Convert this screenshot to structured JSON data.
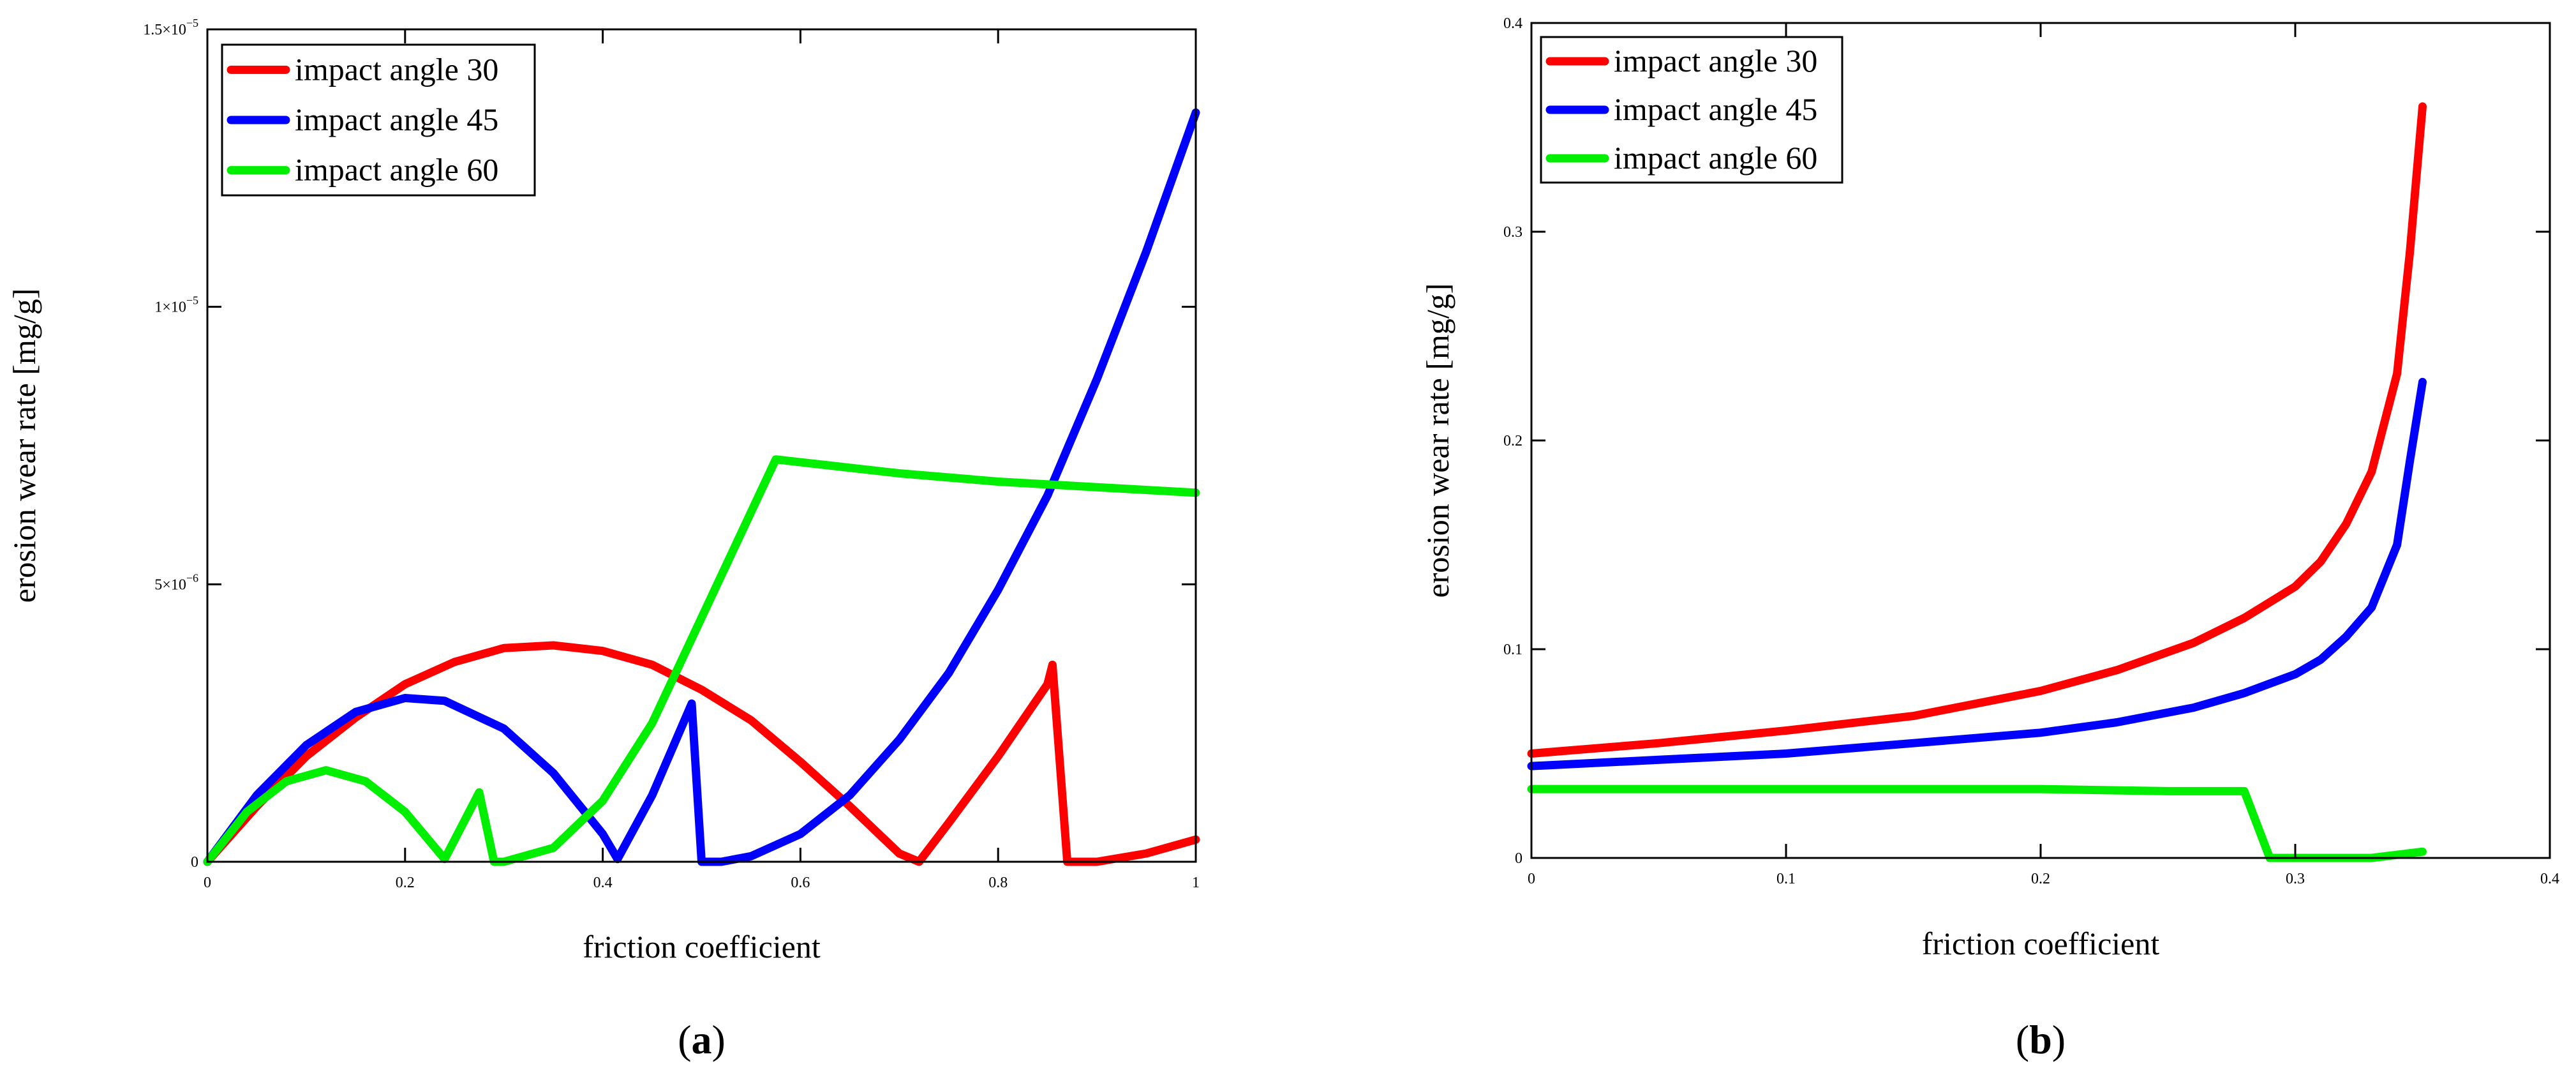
{
  "chart_data": [
    {
      "panel": "a",
      "type": "line",
      "xlabel": "friction coefficient",
      "ylabel": "erosion wear rate [mg/g]",
      "caption": {
        "open": "(",
        "letter": "a",
        "close": ")"
      },
      "xlim": [
        0,
        1
      ],
      "ylim": [
        0,
        1.5e-05
      ],
      "xticks": [
        {
          "value": 0,
          "label": "0"
        },
        {
          "value": 0.2,
          "label": "0.2"
        },
        {
          "value": 0.4,
          "label": "0.4"
        },
        {
          "value": 0.6,
          "label": "0.6"
        },
        {
          "value": 0.8,
          "label": "0.8"
        },
        {
          "value": 1,
          "label": "1"
        }
      ],
      "yticks": [
        {
          "value": 0,
          "mantissa": "0",
          "exponent": ""
        },
        {
          "value": 5e-06,
          "mantissa": "5×10",
          "exponent": "−6"
        },
        {
          "value": 1e-05,
          "mantissa": "1×10",
          "exponent": "−5"
        },
        {
          "value": 1.5e-05,
          "mantissa": "1.5×10",
          "exponent": "−5"
        }
      ],
      "legend": {
        "position": "top-left"
      },
      "series": [
        {
          "name": "impact angle 30",
          "color": "#ff0000",
          "x": [
            0,
            0.05,
            0.1,
            0.15,
            0.2,
            0.25,
            0.3,
            0.35,
            0.4,
            0.45,
            0.5,
            0.55,
            0.6,
            0.65,
            0.7,
            0.72,
            0.75,
            0.8,
            0.85,
            0.855,
            0.87,
            0.9,
            0.95,
            1.0
          ],
          "y": [
            0,
            1e-06,
            1.9e-06,
            2.6e-06,
            3.2e-06,
            3.6e-06,
            3.85e-06,
            3.9e-06,
            3.8e-06,
            3.55e-06,
            3.1e-06,
            2.55e-06,
            1.8e-06,
            1e-06,
            1.5e-07,
            0,
            7e-07,
            1.9e-06,
            3.2e-06,
            3.55e-06,
            0,
            0,
            1.5e-07,
            4e-07
          ]
        },
        {
          "name": "impact angle 45",
          "color": "#0000ff",
          "x": [
            0,
            0.05,
            0.1,
            0.15,
            0.2,
            0.24,
            0.3,
            0.35,
            0.4,
            0.415,
            0.45,
            0.49,
            0.5,
            0.52,
            0.55,
            0.6,
            0.65,
            0.7,
            0.75,
            0.8,
            0.85,
            0.9,
            0.95,
            1.0
          ],
          "y": [
            0,
            1.2e-06,
            2.1e-06,
            2.7e-06,
            2.95e-06,
            2.9e-06,
            2.4e-06,
            1.6e-06,
            5e-07,
            5e-08,
            1.2e-06,
            2.85e-06,
            0,
            0,
            1e-07,
            5e-07,
            1.2e-06,
            2.2e-06,
            3.4e-06,
            4.9e-06,
            6.6e-06,
            8.7e-06,
            1.1e-05,
            1.35e-05
          ]
        },
        {
          "name": "impact angle 60",
          "color": "#00ee00",
          "x": [
            0,
            0.04,
            0.08,
            0.12,
            0.16,
            0.2,
            0.24,
            0.275,
            0.29,
            0.3,
            0.35,
            0.4,
            0.45,
            0.5,
            0.55,
            0.575,
            0.6,
            0.7,
            0.8,
            0.9,
            1.0
          ],
          "y": [
            0,
            9e-07,
            1.45e-06,
            1.65e-06,
            1.45e-06,
            9e-07,
            5e-08,
            1.25e-06,
            0,
            0,
            2.5e-07,
            1.1e-06,
            2.5e-06,
            4.4e-06,
            6.3e-06,
            7.25e-06,
            7.2e-06,
            7e-06,
            6.85e-06,
            6.75e-06,
            6.65e-06
          ]
        }
      ]
    },
    {
      "panel": "b",
      "type": "line",
      "xlabel": "friction coefficient",
      "ylabel": "erosion wear rate [mg/g]",
      "caption": {
        "open": "(",
        "letter": "b",
        "close": ")"
      },
      "xlim": [
        0,
        0.4
      ],
      "ylim": [
        0,
        0.4
      ],
      "xticks": [
        {
          "value": 0,
          "label": "0"
        },
        {
          "value": 0.1,
          "label": "0.1"
        },
        {
          "value": 0.2,
          "label": "0.2"
        },
        {
          "value": 0.3,
          "label": "0.3"
        },
        {
          "value": 0.4,
          "label": "0.4"
        }
      ],
      "yticks": [
        {
          "value": 0,
          "label": "0"
        },
        {
          "value": 0.1,
          "label": "0.1"
        },
        {
          "value": 0.2,
          "label": "0.2"
        },
        {
          "value": 0.3,
          "label": "0.3"
        },
        {
          "value": 0.4,
          "label": "0.4"
        }
      ],
      "legend": {
        "position": "top-left"
      },
      "series": [
        {
          "name": "impact angle 30",
          "color": "#ff0000",
          "x": [
            0,
            0.05,
            0.1,
            0.15,
            0.2,
            0.23,
            0.26,
            0.28,
            0.3,
            0.31,
            0.32,
            0.33,
            0.34,
            0.345,
            0.35
          ],
          "y": [
            0.05,
            0.055,
            0.061,
            0.068,
            0.08,
            0.09,
            0.103,
            0.115,
            0.13,
            0.142,
            0.16,
            0.185,
            0.232,
            0.29,
            0.36
          ]
        },
        {
          "name": "impact angle 45",
          "color": "#0000ff",
          "x": [
            0,
            0.05,
            0.1,
            0.15,
            0.2,
            0.23,
            0.26,
            0.28,
            0.3,
            0.31,
            0.32,
            0.33,
            0.34,
            0.345,
            0.35
          ],
          "y": [
            0.044,
            0.047,
            0.05,
            0.055,
            0.06,
            0.065,
            0.072,
            0.079,
            0.088,
            0.095,
            0.106,
            0.12,
            0.15,
            0.19,
            0.228
          ]
        },
        {
          "name": "impact angle 60",
          "color": "#00ee00",
          "x": [
            0,
            0.1,
            0.2,
            0.25,
            0.28,
            0.29,
            0.3,
            0.33,
            0.35
          ],
          "y": [
            0.033,
            0.033,
            0.033,
            0.032,
            0.032,
            0,
            0,
            0,
            0.003
          ]
        }
      ]
    }
  ]
}
